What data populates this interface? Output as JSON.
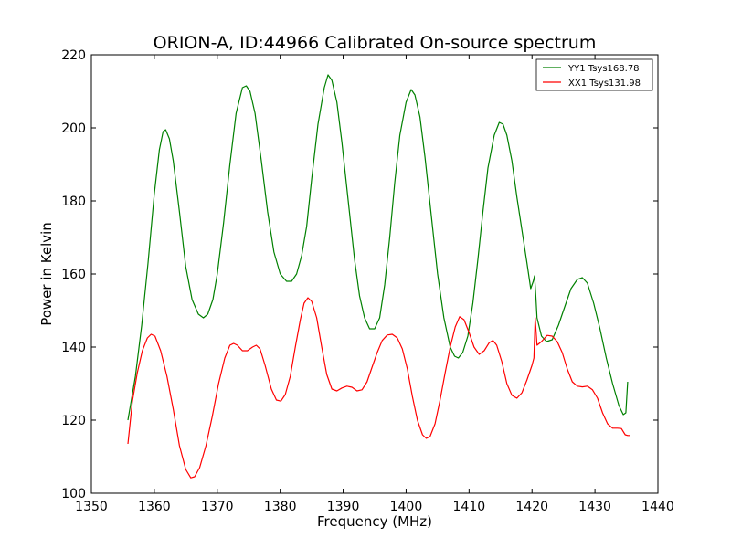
{
  "chart_data": {
    "type": "line",
    "title": "ORION-A, ID:44966 Calibrated On-source spectrum",
    "xlabel": "Frequency (MHz)",
    "ylabel": "Power in Kelvin",
    "xlim": [
      1350,
      1440
    ],
    "ylim": [
      100,
      220
    ],
    "xticks": [
      1350,
      1360,
      1370,
      1380,
      1390,
      1400,
      1410,
      1420,
      1430,
      1440
    ],
    "yticks": [
      100,
      120,
      140,
      160,
      180,
      200,
      220
    ],
    "grid": false,
    "legend_position": "top-right",
    "series": [
      {
        "name": "YY1 Tsys168.78",
        "color": "#008000",
        "points": [
          [
            1355.8,
            120
          ],
          [
            1357,
            132
          ],
          [
            1358,
            146
          ],
          [
            1359,
            163
          ],
          [
            1360,
            182
          ],
          [
            1360.8,
            194
          ],
          [
            1361.4,
            199
          ],
          [
            1361.8,
            199.5
          ],
          [
            1362.4,
            197
          ],
          [
            1363,
            191
          ],
          [
            1364,
            177
          ],
          [
            1365,
            162
          ],
          [
            1366,
            153
          ],
          [
            1367,
            149
          ],
          [
            1367.8,
            148
          ],
          [
            1368.5,
            149
          ],
          [
            1369.3,
            153
          ],
          [
            1370,
            160
          ],
          [
            1371,
            174
          ],
          [
            1372,
            190
          ],
          [
            1373,
            204
          ],
          [
            1374,
            211
          ],
          [
            1374.6,
            211.5
          ],
          [
            1375.2,
            210
          ],
          [
            1376,
            204
          ],
          [
            1377,
            191
          ],
          [
            1378,
            177
          ],
          [
            1379,
            166
          ],
          [
            1380,
            160
          ],
          [
            1381,
            158
          ],
          [
            1381.8,
            158
          ],
          [
            1382.6,
            160
          ],
          [
            1383.4,
            165
          ],
          [
            1384.2,
            173
          ],
          [
            1385,
            186
          ],
          [
            1386,
            201
          ],
          [
            1387,
            211
          ],
          [
            1387.6,
            214.5
          ],
          [
            1388.2,
            213
          ],
          [
            1389,
            207
          ],
          [
            1389.8,
            196
          ],
          [
            1390.8,
            180
          ],
          [
            1391.8,
            164
          ],
          [
            1392.6,
            154
          ],
          [
            1393.4,
            148
          ],
          [
            1394.2,
            145
          ],
          [
            1395,
            145
          ],
          [
            1395.8,
            148
          ],
          [
            1396.6,
            157
          ],
          [
            1397.4,
            170
          ],
          [
            1398.2,
            185
          ],
          [
            1399,
            198
          ],
          [
            1400,
            207
          ],
          [
            1400.8,
            210.5
          ],
          [
            1401.4,
            209
          ],
          [
            1402.2,
            203
          ],
          [
            1403,
            192
          ],
          [
            1404,
            176
          ],
          [
            1405,
            160
          ],
          [
            1406,
            148
          ],
          [
            1407,
            140
          ],
          [
            1407.7,
            137.5
          ],
          [
            1408.3,
            137
          ],
          [
            1409,
            138.5
          ],
          [
            1409.8,
            143
          ],
          [
            1410.6,
            152
          ],
          [
            1411.4,
            164
          ],
          [
            1412.2,
            177
          ],
          [
            1413,
            189
          ],
          [
            1414,
            198
          ],
          [
            1414.8,
            201.5
          ],
          [
            1415.4,
            201
          ],
          [
            1416,
            198
          ],
          [
            1416.8,
            191
          ],
          [
            1417.6,
            181
          ],
          [
            1418.4,
            172
          ],
          [
            1419.2,
            163
          ],
          [
            1419.8,
            156
          ],
          [
            1420.2,
            158
          ],
          [
            1420.4,
            159.5
          ],
          [
            1420.6,
            154
          ],
          [
            1420.8,
            148
          ],
          [
            1421.5,
            143
          ],
          [
            1422.3,
            141.5
          ],
          [
            1423.2,
            142
          ],
          [
            1424.2,
            146
          ],
          [
            1425.2,
            151
          ],
          [
            1426.2,
            156
          ],
          [
            1427.2,
            158.5
          ],
          [
            1428,
            159
          ],
          [
            1428.8,
            157.5
          ],
          [
            1429.8,
            152
          ],
          [
            1430.8,
            145
          ],
          [
            1431.8,
            137
          ],
          [
            1432.8,
            130
          ],
          [
            1433.8,
            124
          ],
          [
            1434.5,
            121.5
          ],
          [
            1434.9,
            122
          ],
          [
            1435.2,
            130.5
          ]
        ]
      },
      {
        "name": "XX1 Tsys131.98",
        "color": "#ff0000",
        "points": [
          [
            1355.8,
            113.5
          ],
          [
            1356.5,
            125
          ],
          [
            1357.3,
            133
          ],
          [
            1358.1,
            139
          ],
          [
            1358.9,
            142.5
          ],
          [
            1359.5,
            143.5
          ],
          [
            1360.1,
            143
          ],
          [
            1361,
            139
          ],
          [
            1362,
            132
          ],
          [
            1363,
            123
          ],
          [
            1364,
            113
          ],
          [
            1365,
            106.5
          ],
          [
            1365.8,
            104.2
          ],
          [
            1366.4,
            104.5
          ],
          [
            1367.2,
            107
          ],
          [
            1368.2,
            113
          ],
          [
            1369.2,
            121
          ],
          [
            1370.2,
            130
          ],
          [
            1371.2,
            137
          ],
          [
            1372,
            140.5
          ],
          [
            1372.6,
            141
          ],
          [
            1373.2,
            140.5
          ],
          [
            1374,
            139
          ],
          [
            1374.8,
            139
          ],
          [
            1375.6,
            140
          ],
          [
            1376.2,
            140.5
          ],
          [
            1376.8,
            139.5
          ],
          [
            1377.6,
            135
          ],
          [
            1378.6,
            128.5
          ],
          [
            1379.4,
            125.5
          ],
          [
            1380.1,
            125.2
          ],
          [
            1380.8,
            127
          ],
          [
            1381.6,
            132
          ],
          [
            1382.4,
            140
          ],
          [
            1383.2,
            147.5
          ],
          [
            1383.8,
            152
          ],
          [
            1384.4,
            153.5
          ],
          [
            1385,
            152.5
          ],
          [
            1385.8,
            148
          ],
          [
            1386.6,
            140
          ],
          [
            1387.4,
            132.5
          ],
          [
            1388.2,
            128.5
          ],
          [
            1389,
            128
          ],
          [
            1389.8,
            128.8
          ],
          [
            1390.6,
            129.3
          ],
          [
            1391.4,
            129
          ],
          [
            1392.2,
            128
          ],
          [
            1393,
            128.3
          ],
          [
            1393.8,
            130.5
          ],
          [
            1394.6,
            134.5
          ],
          [
            1395.4,
            138.5
          ],
          [
            1396.2,
            141.8
          ],
          [
            1397,
            143.3
          ],
          [
            1397.8,
            143.5
          ],
          [
            1398.6,
            142.5
          ],
          [
            1399.4,
            139.5
          ],
          [
            1400.2,
            134
          ],
          [
            1401,
            126.5
          ],
          [
            1401.8,
            120
          ],
          [
            1402.6,
            116
          ],
          [
            1403.2,
            115
          ],
          [
            1403.8,
            115.5
          ],
          [
            1404.6,
            119
          ],
          [
            1405.4,
            125.5
          ],
          [
            1406.2,
            133
          ],
          [
            1407,
            140
          ],
          [
            1407.8,
            145.5
          ],
          [
            1408.5,
            148.3
          ],
          [
            1409.2,
            147.5
          ],
          [
            1410,
            144
          ],
          [
            1410.8,
            140
          ],
          [
            1411.6,
            138
          ],
          [
            1412.4,
            139
          ],
          [
            1413.2,
            141.2
          ],
          [
            1413.8,
            141.8
          ],
          [
            1414.4,
            140.5
          ],
          [
            1415.2,
            136
          ],
          [
            1416,
            130
          ],
          [
            1416.8,
            126.8
          ],
          [
            1417.6,
            126
          ],
          [
            1418.4,
            127.5
          ],
          [
            1419.2,
            131
          ],
          [
            1420,
            135
          ],
          [
            1420.3,
            137
          ],
          [
            1420.5,
            148
          ],
          [
            1420.8,
            140.5
          ],
          [
            1421.5,
            141.5
          ],
          [
            1422.4,
            143.2
          ],
          [
            1423.2,
            143
          ],
          [
            1424,
            141.5
          ],
          [
            1424.8,
            138.5
          ],
          [
            1425.6,
            134
          ],
          [
            1426.4,
            130.5
          ],
          [
            1427.2,
            129.3
          ],
          [
            1428,
            129.1
          ],
          [
            1428.8,
            129.3
          ],
          [
            1429.6,
            128.3
          ],
          [
            1430.4,
            126
          ],
          [
            1431.2,
            122
          ],
          [
            1432,
            119
          ],
          [
            1432.8,
            117.8
          ],
          [
            1433.6,
            117.8
          ],
          [
            1434.2,
            117.7
          ],
          [
            1434.8,
            116
          ],
          [
            1435.2,
            115.8
          ],
          [
            1435.5,
            115.8
          ]
        ]
      }
    ]
  }
}
